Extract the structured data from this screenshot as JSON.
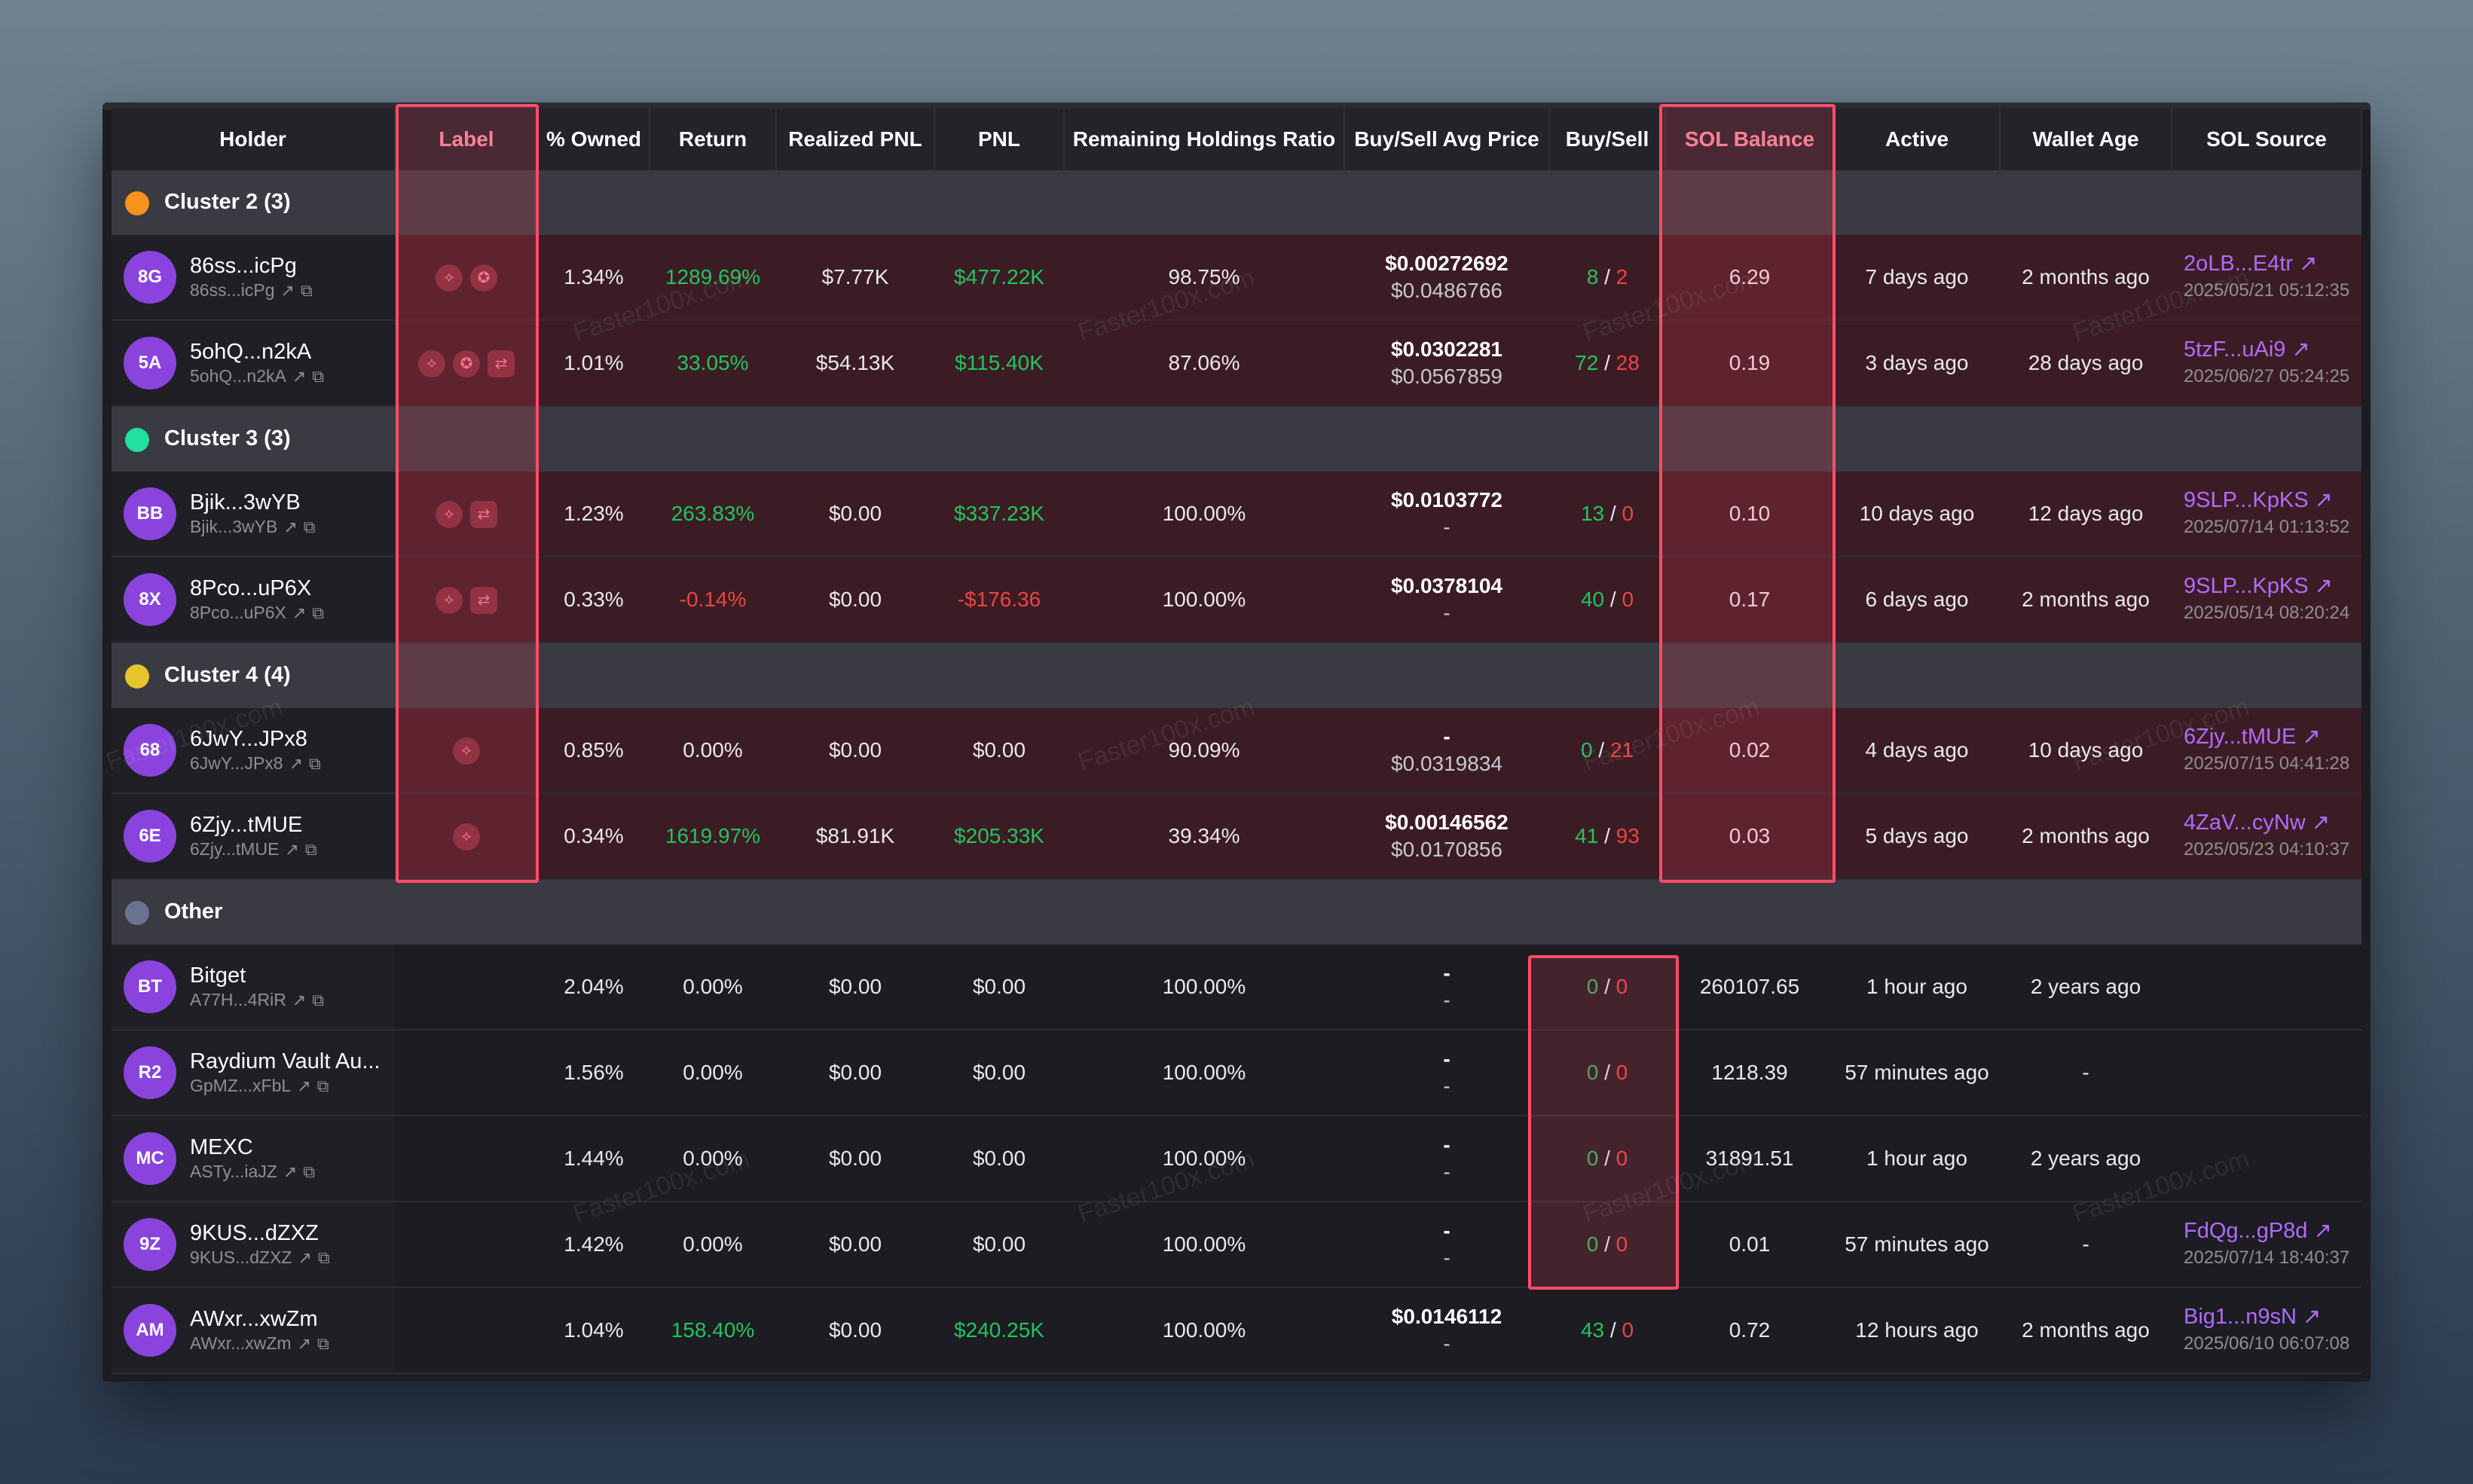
{
  "columns": [
    "Holder",
    "Label",
    "% Owned",
    "Return",
    "Realized PNL",
    "PNL",
    "Remaining Holdings Ratio",
    "Buy/Sell Avg Price",
    "Buy/Sell",
    "SOL Balance",
    "Active",
    "Wallet Age",
    "SOL Source"
  ],
  "colors": {
    "accent_purple": "#b36bff",
    "positive": "#22c55e",
    "negative": "#ef4444",
    "highlight": "#ff4d6a"
  },
  "watermark": "Faster100x.com",
  "groups": [
    {
      "name": "Cluster 2 (3)",
      "dot_color": "#f7931a",
      "kind": "cluster",
      "rows": [
        {
          "avatar": "8G",
          "name": "86ss...icPg",
          "sub": "86ss...icPg",
          "labels": [
            "share-icon",
            "badge-icon"
          ],
          "owned": "1.34%",
          "ret": "1289.69%",
          "ret_class": "green",
          "realized": "$7.77K",
          "pnl": "$477.22K",
          "pnl_class": "green",
          "ratio": "98.75%",
          "price_top": "$0.00272692",
          "price_bot": "$0.0486766",
          "buy": "8",
          "sell": "2",
          "sol": "6.29",
          "active": "7 days ago",
          "age": "2 months ago",
          "src": "2oLB...E4tr",
          "src_time": "2025/05/21 05:12:35"
        },
        {
          "avatar": "5A",
          "name": "5ohQ...n2kA",
          "sub": "5ohQ...n2kA",
          "labels": [
            "share-icon",
            "badge-icon",
            "swap-icon"
          ],
          "owned": "1.01%",
          "ret": "33.05%",
          "ret_class": "green",
          "realized": "$54.13K",
          "pnl": "$115.40K",
          "pnl_class": "green",
          "ratio": "87.06%",
          "price_top": "$0.0302281",
          "price_bot": "$0.0567859",
          "buy": "72",
          "sell": "28",
          "sol": "0.19",
          "active": "3 days ago",
          "age": "28 days ago",
          "src": "5tzF...uAi9",
          "src_time": "2025/06/27 05:24:25"
        }
      ]
    },
    {
      "name": "Cluster 3 (3)",
      "dot_color": "#22e0a0",
      "kind": "cluster",
      "rows": [
        {
          "avatar": "BB",
          "name": "Bjik...3wYB",
          "sub": "Bjik...3wYB",
          "labels": [
            "share-icon",
            "swap-icon"
          ],
          "owned": "1.23%",
          "ret": "263.83%",
          "ret_class": "green",
          "realized": "$0.00",
          "pnl": "$337.23K",
          "pnl_class": "green",
          "ratio": "100.00%",
          "price_top": "$0.0103772",
          "price_bot": "-",
          "buy": "13",
          "sell": "0",
          "sol": "0.10",
          "active": "10 days ago",
          "age": "12 days ago",
          "src": "9SLP...KpKS",
          "src_time": "2025/07/14 01:13:52"
        },
        {
          "avatar": "8X",
          "name": "8Pco...uP6X",
          "sub": "8Pco...uP6X",
          "labels": [
            "share-icon",
            "swap-icon"
          ],
          "owned": "0.33%",
          "ret": "-0.14%",
          "ret_class": "red",
          "realized": "$0.00",
          "pnl": "-$176.36",
          "pnl_class": "red",
          "ratio": "100.00%",
          "price_top": "$0.0378104",
          "price_bot": "-",
          "buy": "40",
          "sell": "0",
          "sol": "0.17",
          "active": "6 days ago",
          "age": "2 months ago",
          "src": "9SLP...KpKS",
          "src_time": "2025/05/14 08:20:24"
        }
      ]
    },
    {
      "name": "Cluster 4 (4)",
      "dot_color": "#e6c52a",
      "kind": "cluster",
      "rows": [
        {
          "avatar": "68",
          "name": "6JwY...JPx8",
          "sub": "6JwY...JPx8",
          "labels": [
            "share-icon"
          ],
          "owned": "0.85%",
          "ret": "0.00%",
          "ret_class": "",
          "realized": "$0.00",
          "pnl": "$0.00",
          "pnl_class": "",
          "ratio": "90.09%",
          "price_top": "-",
          "price_bot": "$0.0319834",
          "buy": "0",
          "sell": "21",
          "sol": "0.02",
          "active": "4 days ago",
          "age": "10 days ago",
          "src": "6Zjy...tMUE",
          "src_time": "2025/07/15 04:41:28"
        },
        {
          "avatar": "6E",
          "name": "6Zjy...tMUE",
          "sub": "6Zjy...tMUE",
          "labels": [
            "share-icon"
          ],
          "owned": "0.34%",
          "ret": "1619.97%",
          "ret_class": "green",
          "realized": "$81.91K",
          "pnl": "$205.33K",
          "pnl_class": "green",
          "ratio": "39.34%",
          "price_top": "$0.00146562",
          "price_bot": "$0.0170856",
          "buy": "41",
          "sell": "93",
          "sol": "0.03",
          "active": "5 days ago",
          "age": "2 months ago",
          "src": "4ZaV...cyNw",
          "src_time": "2025/05/23 04:10:37"
        }
      ]
    },
    {
      "name": "Other",
      "dot_color": "#6b7391",
      "kind": "other",
      "rows": [
        {
          "avatar": "BT",
          "name": "Bitget",
          "sub": "A77H...4RiR",
          "labels": [],
          "owned": "2.04%",
          "ret": "0.00%",
          "ret_class": "",
          "realized": "$0.00",
          "pnl": "$0.00",
          "pnl_class": "",
          "ratio": "100.00%",
          "price_top": "-",
          "price_bot": "-",
          "buy": "0",
          "sell": "0",
          "sol": "260107.65",
          "active": "1 hour ago",
          "age": "2 years ago",
          "src": "",
          "src_time": ""
        },
        {
          "avatar": "R2",
          "name": "Raydium Vault Au...",
          "sub": "GpMZ...xFbL",
          "labels": [],
          "owned": "1.56%",
          "ret": "0.00%",
          "ret_class": "",
          "realized": "$0.00",
          "pnl": "$0.00",
          "pnl_class": "",
          "ratio": "100.00%",
          "price_top": "-",
          "price_bot": "-",
          "buy": "0",
          "sell": "0",
          "sol": "1218.39",
          "active": "57 minutes ago",
          "age": "-",
          "src": "",
          "src_time": ""
        },
        {
          "avatar": "MC",
          "name": "MEXC",
          "sub": "ASTy...iaJZ",
          "labels": [],
          "owned": "1.44%",
          "ret": "0.00%",
          "ret_class": "",
          "realized": "$0.00",
          "pnl": "$0.00",
          "pnl_class": "",
          "ratio": "100.00%",
          "price_top": "-",
          "price_bot": "-",
          "buy": "0",
          "sell": "0",
          "sol": "31891.51",
          "active": "1 hour ago",
          "age": "2 years ago",
          "src": "",
          "src_time": ""
        },
        {
          "avatar": "9Z",
          "name": "9KUS...dZXZ",
          "sub": "9KUS...dZXZ",
          "labels": [],
          "owned": "1.42%",
          "ret": "0.00%",
          "ret_class": "",
          "realized": "$0.00",
          "pnl": "$0.00",
          "pnl_class": "",
          "ratio": "100.00%",
          "price_top": "-",
          "price_bot": "-",
          "buy": "0",
          "sell": "0",
          "sol": "0.01",
          "active": "57 minutes ago",
          "age": "-",
          "src": "FdQg...gP8d",
          "src_time": "2025/07/14 18:40:37"
        },
        {
          "avatar": "AM",
          "name": "AWxr...xwZm",
          "sub": "AWxr...xwZm",
          "labels": [],
          "owned": "1.04%",
          "ret": "158.40%",
          "ret_class": "green",
          "realized": "$0.00",
          "pnl": "$240.25K",
          "pnl_class": "green",
          "ratio": "100.00%",
          "price_top": "$0.0146112",
          "price_bot": "-",
          "buy": "43",
          "sell": "0",
          "sol": "0.72",
          "active": "12 hours ago",
          "age": "2 months ago",
          "src": "Big1...n9sN",
          "src_time": "2025/06/10 06:07:08"
        }
      ]
    }
  ]
}
